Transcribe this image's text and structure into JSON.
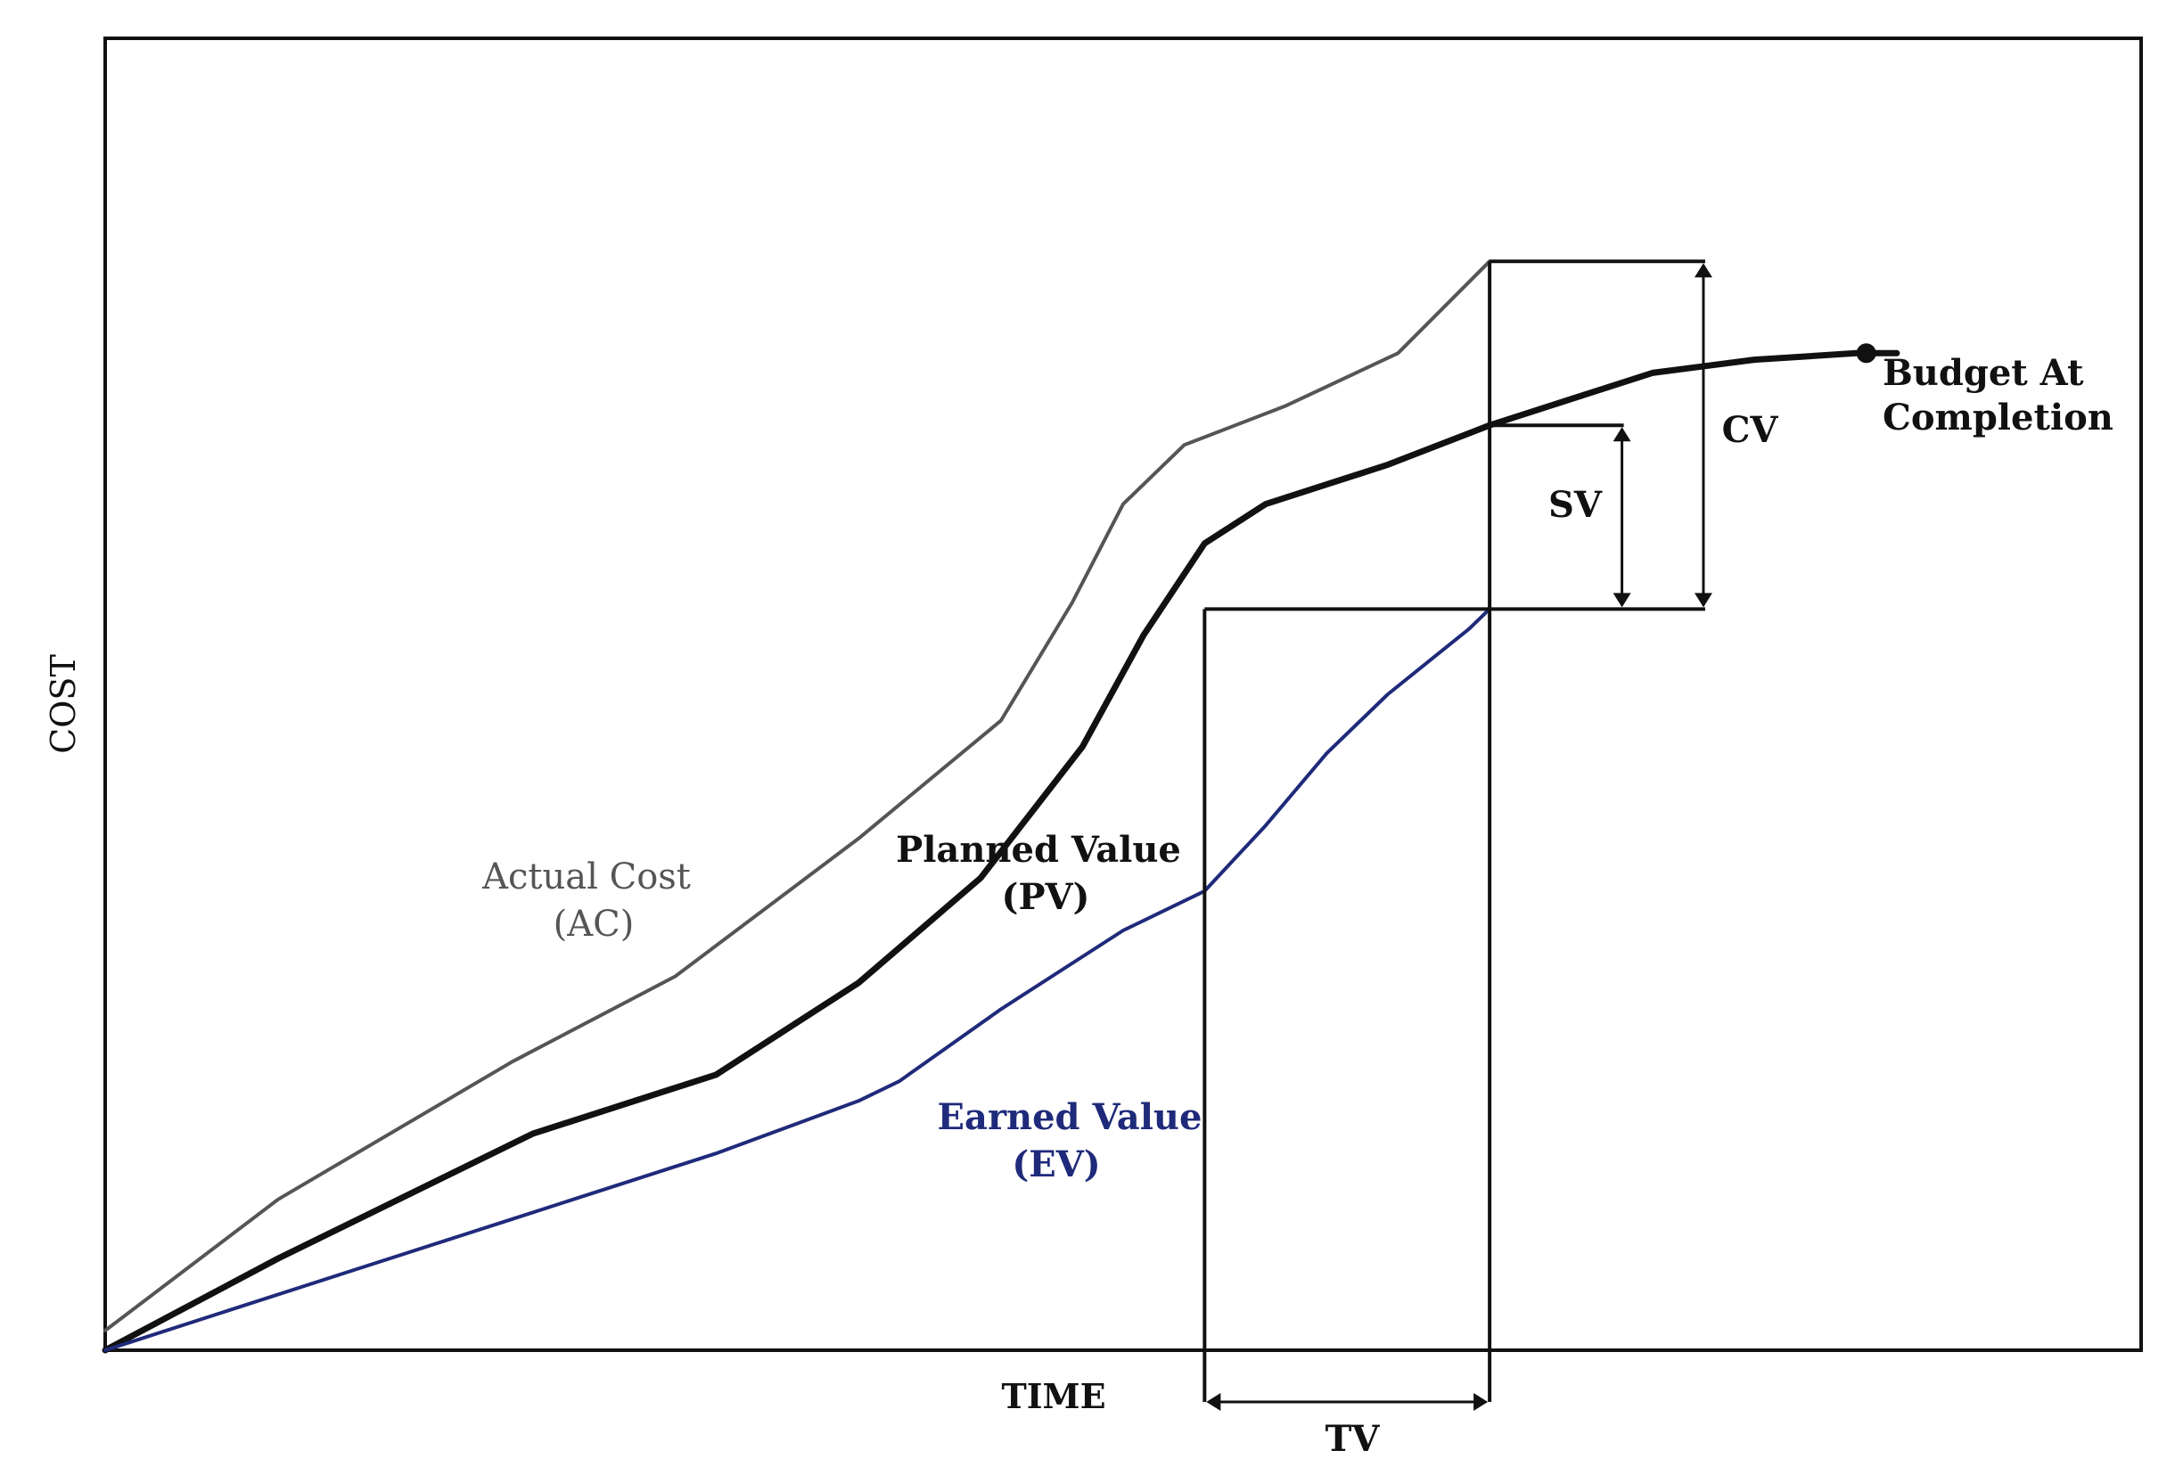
{
  "chart_data": {
    "type": "line",
    "title": "",
    "xlabel": "TIME",
    "ylabel": "COST",
    "xlim": [
      0,
      100
    ],
    "ylim": [
      0,
      100
    ],
    "grid": false,
    "colors": {
      "actual_cost": "#555555",
      "planned_value": "#111111",
      "earned_value": "#1f2a7a",
      "frame": "#111111",
      "text": "#111111"
    },
    "series": [
      {
        "name_lines": [
          "Actual Cost",
          "(AC)"
        ],
        "key": "actual_cost",
        "x": [
          0,
          8.5,
          20,
          28,
          37,
          44,
          47.5,
          50,
          53,
          58,
          63.5,
          68
        ],
        "y": [
          1.5,
          11.5,
          22,
          28.5,
          39,
          48,
          57,
          64.5,
          69,
          72,
          76,
          83
        ]
      },
      {
        "name_lines": [
          "Planned Value",
          "(PV)"
        ],
        "key": "planned_value",
        "x": [
          0,
          8.5,
          21,
          30,
          37,
          43,
          48,
          51,
          54,
          57,
          63,
          68,
          73,
          76,
          81,
          86,
          88
        ],
        "y": [
          0,
          7,
          16.5,
          21,
          28,
          36,
          46,
          54.5,
          61.5,
          64.5,
          67.5,
          70.5,
          73,
          74.5,
          75.5,
          76,
          76
        ]
      },
      {
        "name_lines": [
          "Earned Value",
          "(EV)"
        ],
        "key": "earned_value",
        "x": [
          0,
          11,
          20,
          30,
          37,
          39,
          44,
          50,
          54,
          57,
          60,
          63,
          65,
          67,
          68
        ],
        "y": [
          0,
          5.5,
          10,
          15,
          19,
          20.5,
          26,
          32,
          35,
          40,
          45.5,
          50,
          52.5,
          55,
          56.5
        ]
      }
    ],
    "budget_at_completion": {
      "label_lines": [
        "Budget At",
        "Completion"
      ],
      "x": 86.5,
      "y": 76
    },
    "variance_markers": {
      "status_date_x": 68,
      "earned_date_x": 54,
      "ac_level": 83,
      "pv_level": 70.5,
      "ev_level": 56.5,
      "CV": "CV",
      "SV": "SV",
      "TV": "TV"
    }
  }
}
